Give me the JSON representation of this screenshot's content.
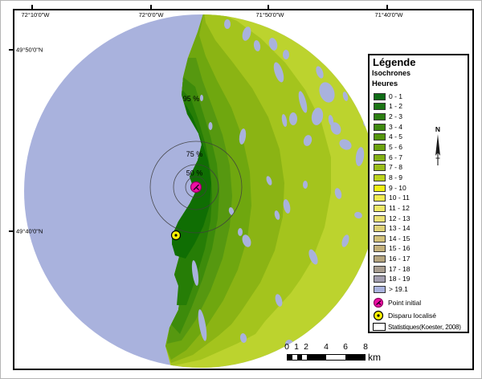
{
  "map": {
    "top_labels": [
      {
        "text": "72°10'0\"W"
      },
      {
        "text": "72°0'0\"W"
      },
      {
        "text": "71°50'0\"W"
      },
      {
        "text": "71°40'0\"W"
      }
    ],
    "left_labels": [
      {
        "text": "49°50'0\"N"
      },
      {
        "text": "49°40'0\"N"
      }
    ],
    "percent_labels": {
      "p95": "95 %",
      "p75": "75 %",
      "p50": "50 %"
    }
  },
  "legend": {
    "title": "Légende",
    "subtitle": "Isochrones",
    "unit": "Heures",
    "classes": [
      {
        "label": "0 - 1",
        "color": "#0E6B15"
      },
      {
        "label": "1 - 2",
        "color": "#1B7414"
      },
      {
        "label": "2 - 3",
        "color": "#2C7E12"
      },
      {
        "label": "3 - 4",
        "color": "#3F8A10"
      },
      {
        "label": "4 - 5",
        "color": "#55960E"
      },
      {
        "label": "5 - 6",
        "color": "#6CA30F"
      },
      {
        "label": "6 - 7",
        "color": "#83B014"
      },
      {
        "label": "7 - 8",
        "color": "#9BBD1A"
      },
      {
        "label": "8 - 9",
        "color": "#BCD31D"
      },
      {
        "label": "9 - 10",
        "color": "#F0F013"
      },
      {
        "label": "10 - 11",
        "color": "#F1EC50"
      },
      {
        "label": "11 - 12",
        "color": "#EFE966"
      },
      {
        "label": "12 - 13",
        "color": "#EAE174"
      },
      {
        "label": "13 - 14",
        "color": "#DFD277"
      },
      {
        "label": "14 - 15",
        "color": "#D2C17A"
      },
      {
        "label": "15 - 16",
        "color": "#C4B17C"
      },
      {
        "label": "16 - 17",
        "color": "#B5A57F"
      },
      {
        "label": "17 - 18",
        "color": "#A99E90"
      },
      {
        "label": "18 - 19",
        "color": "#A29EAF"
      },
      {
        "label": "> 19.1",
        "color": "#A9B2DD"
      }
    ],
    "point_initial": "Point initial",
    "disparu": "Disparu localisé",
    "source": "Statistiques(Koester, 2008)"
  },
  "north_label": "N",
  "scalebar": {
    "ticks": [
      "0",
      "1",
      "2",
      "4",
      "6",
      "8"
    ],
    "unit": "km"
  },
  "colors": {
    "water": "#A9B2DD",
    "band0": "#0F6E03",
    "band1": "#267D06",
    "band2": "#3D8B0B",
    "band3": "#569810",
    "band4": "#6FA70F",
    "band5": "#8BB414",
    "band6": "#A4C41D",
    "band7": "#BCD32E",
    "ring": "#3F3F3F",
    "magenta": "#EF0DA4",
    "magenta_dark": "#8F0060",
    "yellow": "#FFF400"
  }
}
